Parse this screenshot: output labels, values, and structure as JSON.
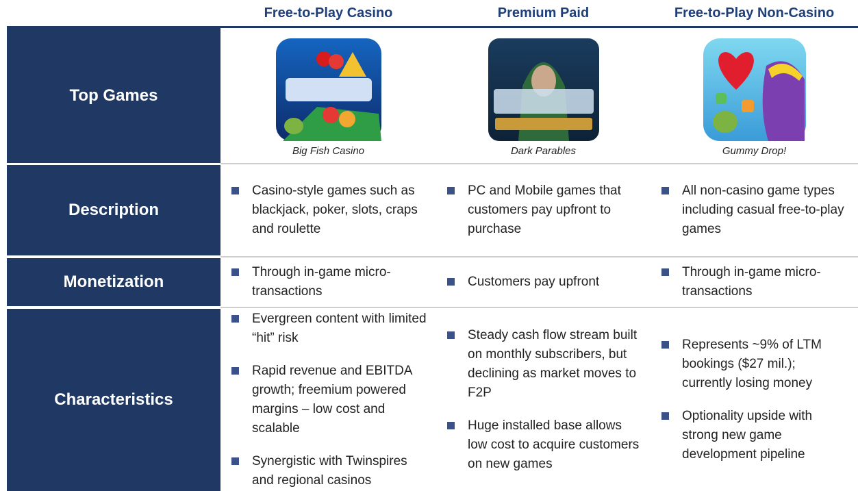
{
  "columns": [
    "Free-to-Play Casino",
    "Premium Paid",
    "Free-to-Play Non-Casino"
  ],
  "top_games": {
    "label": "Top Games",
    "captions": [
      "Big Fish Casino",
      "Dark Parables",
      "Gummy Drop!"
    ]
  },
  "rows": [
    {
      "label": "Description",
      "cells": [
        [
          "Casino-style games such as blackjack, poker, slots, craps and roulette"
        ],
        [
          "PC and Mobile games that customers pay upfront to purchase"
        ],
        [
          "All non-casino game types including casual free-to-play games"
        ]
      ]
    },
    {
      "label": "Monetization",
      "cells": [
        [
          "Through in-game micro-transactions"
        ],
        [
          "Customers pay upfront"
        ],
        [
          "Through in-game micro-transactions"
        ]
      ]
    },
    {
      "label": "Characteristics",
      "cells": [
        [
          "Evergreen content with limited “hit” risk",
          "Rapid revenue and EBITDA growth; freemium powered margins – low cost and scalable",
          "Synergistic with Twinspires and regional casinos"
        ],
        [
          "Steady cash flow stream built on monthly subscribers, but declining as market moves to F2P",
          "Huge installed base allows low cost to acquire customers on new games"
        ],
        [
          "Represents ~9% of LTM bookings ($27 mil.); currently losing money",
          "Optionality upside with strong new game development pipeline"
        ]
      ]
    }
  ]
}
